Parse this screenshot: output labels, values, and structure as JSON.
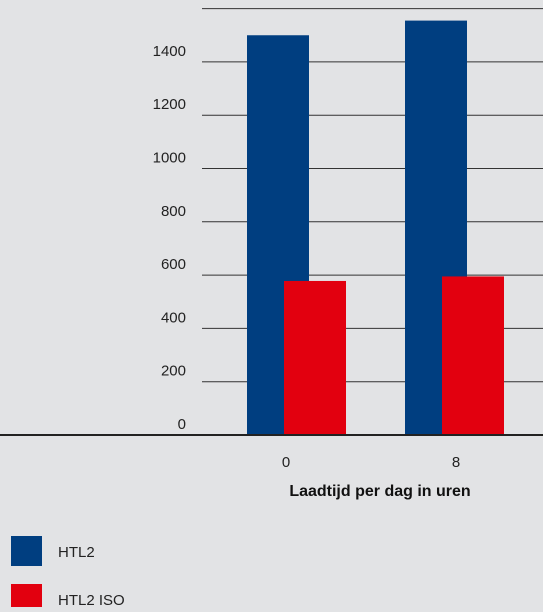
{
  "chart_data": {
    "type": "bar",
    "categories": [
      "0",
      "8"
    ],
    "series": [
      {
        "name": "HTL2",
        "values": [
          1500,
          1555
        ],
        "color": "#003e80"
      },
      {
        "name": "HTL2 ISO",
        "values": [
          578,
          595
        ],
        "color": "#e2000f"
      }
    ],
    "yticks": [
      "0",
      "200",
      "400",
      "600",
      "800",
      "1000",
      "1200",
      "1400"
    ],
    "ylim": [
      0,
      1600
    ],
    "xlabel": "Laadtijd per dag in uren",
    "ylabel": "",
    "title": "",
    "grid": true,
    "legend_position": "bottom-left"
  }
}
